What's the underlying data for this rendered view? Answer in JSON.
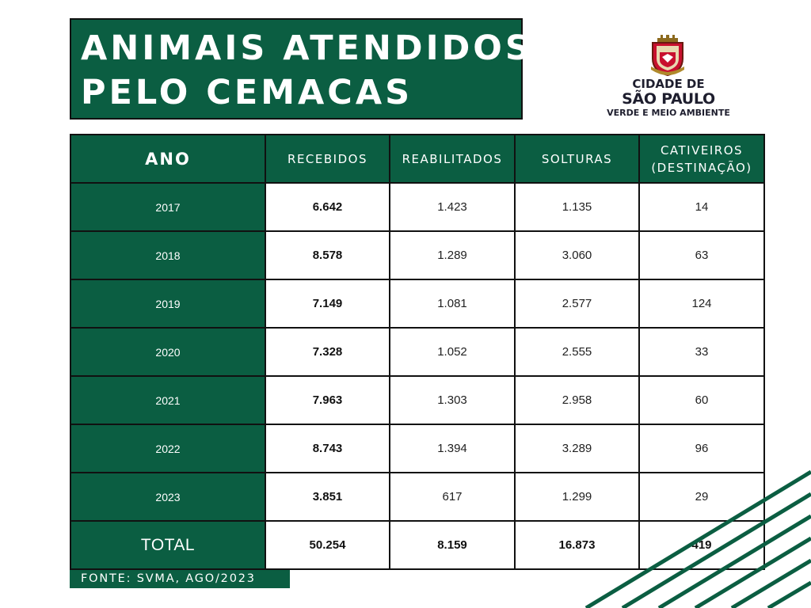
{
  "title": {
    "line1": "ANIMAIS ATENDIDOS",
    "line2": "PELO CEMACAS"
  },
  "logo": {
    "line1": "CIDADE DE",
    "line2": "SÃO PAULO",
    "line3": "VERDE E MEIO AMBIENTE",
    "icon": "sao-paulo-coat-of-arms"
  },
  "table": {
    "headers": [
      "ANO",
      "RECEBIDOS",
      "REABILITADOS",
      "SOLTURAS",
      "CATIVEIROS",
      "(DESTINAÇÃO)"
    ],
    "rows": [
      {
        "year": "2017",
        "recebidos": "6.642",
        "reabilitados": "1.423",
        "solturas": "1.135",
        "cativeiros": "14"
      },
      {
        "year": "2018",
        "recebidos": "8.578",
        "reabilitados": "1.289",
        "solturas": "3.060",
        "cativeiros": "63"
      },
      {
        "year": "2019",
        "recebidos": "7.149",
        "reabilitados": "1.081",
        "solturas": "2.577",
        "cativeiros": "124"
      },
      {
        "year": "2020",
        "recebidos": "7.328",
        "reabilitados": "1.052",
        "solturas": "2.555",
        "cativeiros": "33"
      },
      {
        "year": "2021",
        "recebidos": "7.963",
        "reabilitados": "1.303",
        "solturas": "2.958",
        "cativeiros": "60"
      },
      {
        "year": "2022",
        "recebidos": "8.743",
        "reabilitados": "1.394",
        "solturas": "3.289",
        "cativeiros": "96"
      },
      {
        "year": "2023",
        "recebidos": "3.851",
        "reabilitados": "617",
        "solturas": "1.299",
        "cativeiros": "29"
      }
    ],
    "total": {
      "label": "TOTAL",
      "recebidos": "50.254",
      "reabilitados": "8.159",
      "solturas": "16.873",
      "cativeiros": "419"
    }
  },
  "source": "FONTE: SVMA, AGO/2023",
  "colors": {
    "primary_green": "#0b5e42",
    "border": "#111111",
    "background": "#ffffff"
  }
}
